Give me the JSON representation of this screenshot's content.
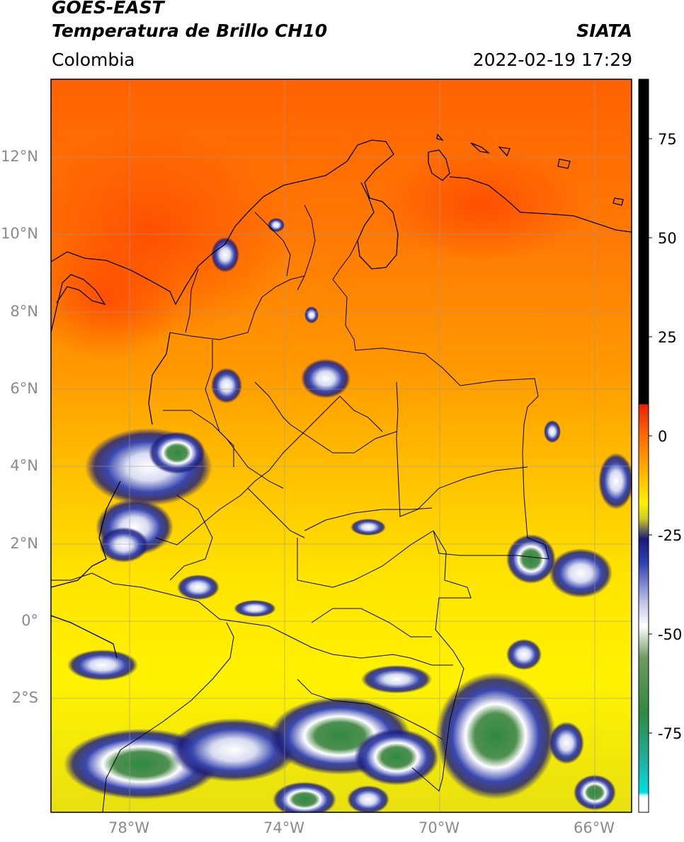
{
  "header": {
    "title_line1": "GOES-EAST",
    "title_line2": "Temperatura de Brillo CH10",
    "region": "Colombia",
    "agency": "SIATA",
    "datetime": "2022-02-19 17:29"
  },
  "map": {
    "lat_labels": [
      "12°N",
      "10°N",
      "8°N",
      "6°N",
      "4°N",
      "2°N",
      "0°",
      "2°S"
    ],
    "lon_labels": [
      "78°W",
      "74°W",
      "70°W",
      "66°W"
    ],
    "extent_lon": [
      -80,
      -65
    ],
    "extent_lat": [
      -5,
      14
    ]
  },
  "colorbar": {
    "ticks": [
      "75",
      "50",
      "25",
      "0",
      "-25",
      "-50",
      "-75"
    ],
    "tick_values": [
      75,
      50,
      25,
      0,
      -25,
      -50,
      -75
    ],
    "range": [
      -95,
      90
    ],
    "stops": [
      {
        "v": 90,
        "color": "#000000"
      },
      {
        "v": 8,
        "color": "#000000"
      },
      {
        "v": 7.9,
        "color": "#e8200a"
      },
      {
        "v": 0,
        "color": "#ff6a00"
      },
      {
        "v": -10,
        "color": "#ffbb00"
      },
      {
        "v": -17,
        "color": "#fff000"
      },
      {
        "v": -21,
        "color": "#c8c828"
      },
      {
        "v": -26,
        "color": "#1a1a78"
      },
      {
        "v": -32,
        "color": "#3040b0"
      },
      {
        "v": -42,
        "color": "#c0c4e8"
      },
      {
        "v": -48,
        "color": "#ffffff"
      },
      {
        "v": -56,
        "color": "#6e9a60"
      },
      {
        "v": -70,
        "color": "#2f8a40"
      },
      {
        "v": -82,
        "color": "#20b0a0"
      },
      {
        "v": -90,
        "color": "#00e0e0"
      },
      {
        "v": -91,
        "color": "#ffffff"
      },
      {
        "v": -95,
        "color": "#ffffff"
      }
    ]
  }
}
